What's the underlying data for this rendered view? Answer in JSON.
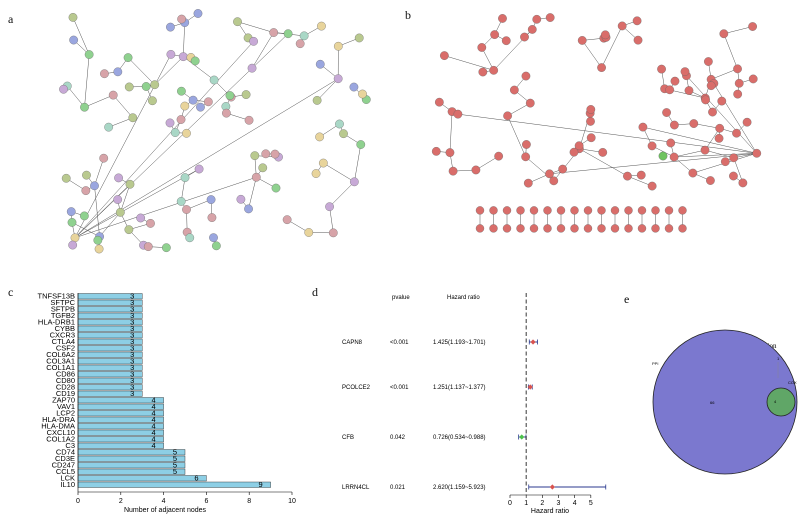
{
  "panels": {
    "a": "a",
    "b": "b",
    "c": "c",
    "d": "d",
    "e": "e"
  },
  "network_a": {
    "node_colors": [
      "#b9c98f",
      "#8fd18f",
      "#9aa6df",
      "#d7a3a8",
      "#e8d49b",
      "#a9d7c6",
      "#c7a9d6"
    ],
    "node_count": 110
  },
  "network_b": {
    "node_color": "#d96d6a",
    "highlight_color": "#6fc35f",
    "node_count": 120
  },
  "chart_data": [
    {
      "type": "bar",
      "orientation": "horizontal",
      "categories": [
        "TNFSF13B",
        "SFTPC",
        "SFTPB",
        "TGFB2",
        "HLA-DRB1",
        "CYBB",
        "CXCR3",
        "CTLA4",
        "CSF2",
        "COL6A2",
        "COL3A1",
        "COL1A1",
        "CD86",
        "CD80",
        "CD28",
        "CD19",
        "ZAP70",
        "VAV1",
        "LCP2",
        "HLA-DRA",
        "HLA-DMA",
        "CXCL10",
        "COL1A2",
        "C3",
        "CD74",
        "CD3E",
        "CD247",
        "CCL5",
        "LCK",
        "IL10"
      ],
      "values": [
        3,
        3,
        3,
        3,
        3,
        3,
        3,
        3,
        3,
        3,
        3,
        3,
        3,
        3,
        3,
        3,
        4,
        4,
        4,
        4,
        4,
        4,
        4,
        4,
        5,
        5,
        5,
        5,
        6,
        9
      ],
      "xlabel": "Number of adjacent nodes",
      "xlim": [
        0,
        10
      ],
      "xticks": [
        0,
        2,
        4,
        6,
        8,
        10
      ],
      "bar_color": "#8dcfe5"
    },
    {
      "type": "forest",
      "headers": {
        "pvalue": "pvalue",
        "hr": "Hazard ratio"
      },
      "rows": [
        {
          "gene": "CAPN8",
          "pvalue": "<0.001",
          "hr_text": "1.425(1.193~1.701)",
          "hr": 1.425,
          "lo": 1.193,
          "hi": 1.701,
          "color": "#d9534f"
        },
        {
          "gene": "PCOLCE2",
          "pvalue": "<0.001",
          "hr_text": "1.251(1.137~1.377)",
          "hr": 1.251,
          "lo": 1.137,
          "hi": 1.377,
          "color": "#d9534f"
        },
        {
          "gene": "CFB",
          "pvalue": "0.042",
          "hr_text": "0.726(0.534~0.988)",
          "hr": 0.726,
          "lo": 0.534,
          "hi": 0.988,
          "color": "#4cc24c"
        },
        {
          "gene": "LRRN4CL",
          "pvalue": "0.021",
          "hr_text": "2.620(1.159~5.923)",
          "hr": 2.62,
          "lo": 1.159,
          "hi": 5.923,
          "color": "#d9534f"
        }
      ],
      "xlabel": "Hazard ratio",
      "xlim": [
        0,
        6
      ],
      "xticks": [
        0,
        1,
        2,
        3,
        4,
        5
      ],
      "ref_line": 1
    },
    {
      "type": "venn",
      "title": "Intersection",
      "sets": [
        {
          "label": "PPI",
          "color": "#7b78cf"
        },
        {
          "label": "COX",
          "color": "#5dab5b"
        }
      ],
      "overlap_label": "4",
      "left_only_label": "66",
      "right_only_label": "1"
    }
  ]
}
